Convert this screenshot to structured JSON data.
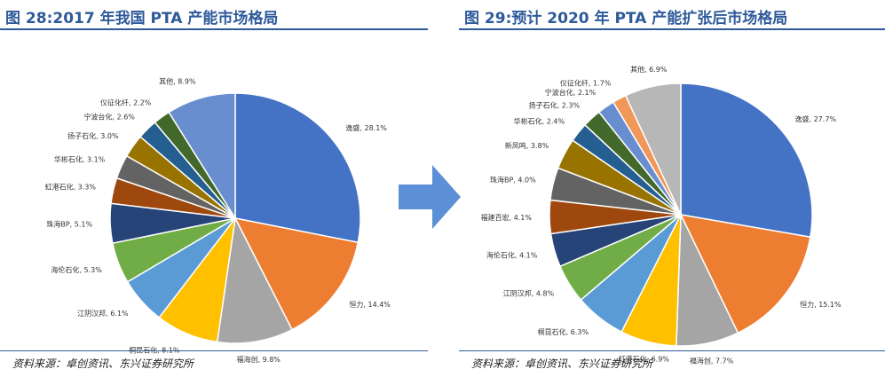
{
  "chart_data": [
    {
      "type": "pie",
      "title": "图 28:2017 年我国 PTA 产能市场格局",
      "source": "资料来源：卓创资讯、东兴证券研究所",
      "slices": [
        {
          "label": "逸盛",
          "value": 28.1,
          "display": "28.1%",
          "color": "#4472C4"
        },
        {
          "label": "恒力",
          "value": 14.4,
          "display": "14.4%",
          "color": "#ED7D31"
        },
        {
          "label": "福海创",
          "value": 9.8,
          "display": "9.8%",
          "color": "#A5A5A5"
        },
        {
          "label": "桐昆石化",
          "value": 8.1,
          "display": "8.1%",
          "color": "#FFC000"
        },
        {
          "label": "江阴汉邦",
          "value": 6.1,
          "display": "6.1%",
          "color": "#5B9BD5"
        },
        {
          "label": "海伦石化",
          "value": 5.3,
          "display": "5.3%",
          "color": "#70AD47"
        },
        {
          "label": "珠海BP",
          "value": 5.1,
          "display": "5.1%",
          "color": "#264478"
        },
        {
          "label": "虹港石化",
          "value": 3.3,
          "display": "3.3%",
          "color": "#9E480E"
        },
        {
          "label": "华彬石化",
          "value": 3.1,
          "display": "3.1%",
          "color": "#636363"
        },
        {
          "label": "扬子石化",
          "value": 3.0,
          "display": "3.0%",
          "color": "#997300"
        },
        {
          "label": "宁波台化",
          "value": 2.6,
          "display": "2.6%",
          "color": "#255E91"
        },
        {
          "label": "仪征化纤",
          "value": 2.2,
          "display": "2.2%",
          "color": "#43682B"
        },
        {
          "label": "其他",
          "value": 8.9,
          "display": "8.9%",
          "color": "#698ED0"
        }
      ]
    },
    {
      "type": "pie",
      "title": "图 29:预计 2020 年 PTA 产能扩张后市场格局",
      "source": "资料来源：卓创资讯、东兴证券研究所",
      "slices": [
        {
          "label": "逸盛",
          "value": 27.7,
          "display": "27.7%",
          "color": "#4472C4"
        },
        {
          "label": "恒力",
          "value": 15.1,
          "display": "15.1%",
          "color": "#ED7D31"
        },
        {
          "label": "福海创",
          "value": 7.7,
          "display": "7.7%",
          "color": "#A5A5A5"
        },
        {
          "label": "虹港石化",
          "value": 6.9,
          "display": "6.9%",
          "color": "#FFC000"
        },
        {
          "label": "桐昆石化",
          "value": 6.3,
          "display": "6.3%",
          "color": "#5B9BD5"
        },
        {
          "label": "江阴汉邦",
          "value": 4.8,
          "display": "4.8%",
          "color": "#70AD47"
        },
        {
          "label": "海伦石化",
          "value": 4.1,
          "display": "4.1%",
          "color": "#264478"
        },
        {
          "label": "福建百宏",
          "value": 4.1,
          "display": "4.1%",
          "color": "#9E480E"
        },
        {
          "label": "珠海BP",
          "value": 4.0,
          "display": "4.0%",
          "color": "#636363"
        },
        {
          "label": "新凤鸣",
          "value": 3.8,
          "display": "3.8%",
          "color": "#997300"
        },
        {
          "label": "华彬石化",
          "value": 2.4,
          "display": "2.4%",
          "color": "#255E91"
        },
        {
          "label": "扬子石化",
          "value": 2.3,
          "display": "2.3%",
          "color": "#43682B"
        },
        {
          "label": "宁波台化",
          "value": 2.1,
          "display": "2.1%",
          "color": "#698ED0"
        },
        {
          "label": "仪征化纤",
          "value": 1.7,
          "display": "1.7%",
          "color": "#F1975A"
        },
        {
          "label": "其他",
          "value": 6.9,
          "display": "6.9%",
          "color": "#B7B7B7"
        }
      ]
    }
  ],
  "arrow_color": "#5B8FD6"
}
